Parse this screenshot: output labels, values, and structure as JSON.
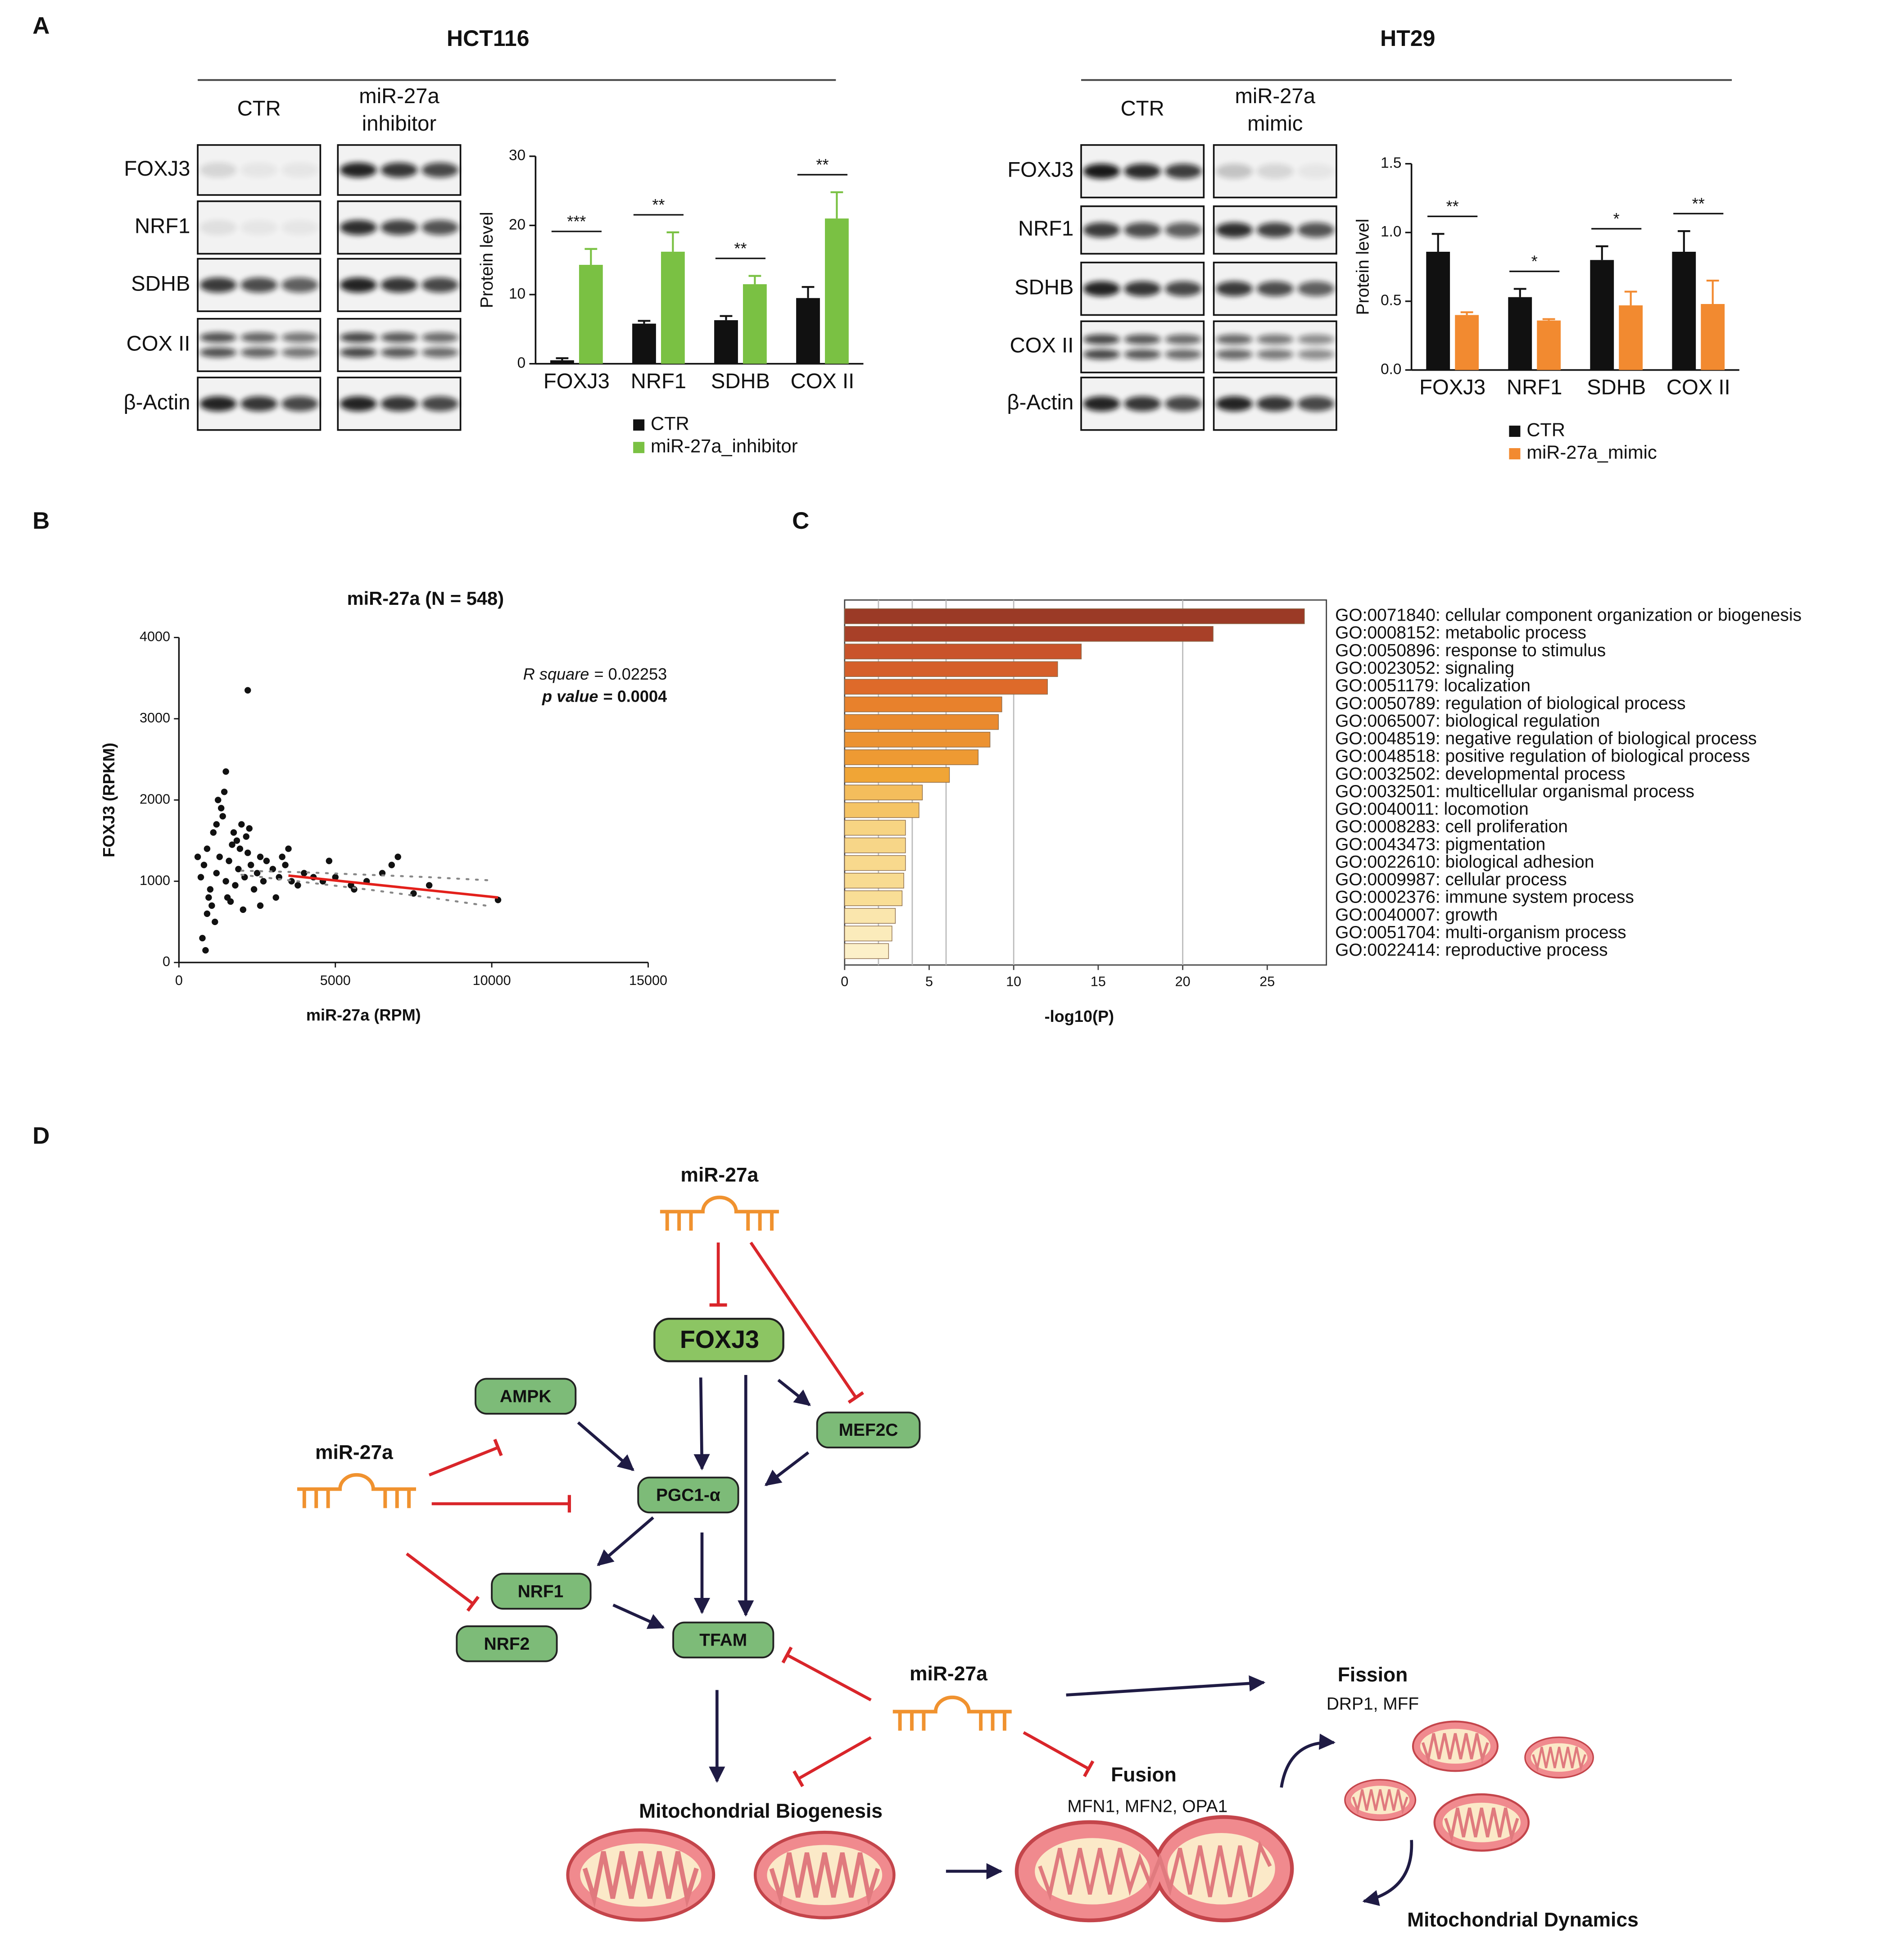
{
  "figure": {
    "panel_labels": [
      "A",
      "B",
      "C",
      "D"
    ]
  },
  "blots": [
    {
      "cell_line": "HCT116",
      "conditions": [
        [
          "CTR"
        ],
        [
          "miR-27a",
          "inhibitor"
        ]
      ],
      "proteins": [
        "FOXJ3",
        "NRF1",
        "SDHB",
        "COX II",
        "β-Actin"
      ]
    },
    {
      "cell_line": "HT29",
      "conditions": [
        [
          "CTR"
        ],
        [
          "miR-27a",
          "mimic"
        ]
      ],
      "proteins": [
        "FOXJ3",
        "NRF1",
        "SDHB",
        "COX II",
        "β-Actin"
      ]
    }
  ],
  "chart_data": [
    {
      "type": "bar",
      "ylabel": "Protein level",
      "categories": [
        "FOXJ3",
        "NRF1",
        "SDHB",
        "COX II"
      ],
      "series": [
        {
          "name": "CTR",
          "color": "#111111",
          "values": [
            0.5,
            5.8,
            6.3,
            9.5
          ],
          "error": [
            0.3,
            0.4,
            0.6,
            1.6
          ]
        },
        {
          "name": "miR-27a_inhibitor",
          "color": "#7ac143",
          "values": [
            14.3,
            16.2,
            11.5,
            21
          ],
          "error": [
            2.3,
            2.8,
            1.2,
            3.8
          ]
        }
      ],
      "significance": [
        "***",
        "**",
        "**",
        "**"
      ],
      "ylim": [
        0,
        30
      ],
      "yticks": [
        0,
        10,
        20,
        30
      ]
    },
    {
      "type": "bar",
      "ylabel": "Protein level",
      "categories": [
        "FOXJ3",
        "NRF1",
        "SDHB",
        "COX II"
      ],
      "series": [
        {
          "name": "CTR",
          "color": "#111111",
          "values": [
            0.86,
            0.53,
            0.8,
            0.86
          ],
          "error": [
            0.13,
            0.06,
            0.1,
            0.15
          ]
        },
        {
          "name": "miR-27a_mimic",
          "color": "#f28a30",
          "values": [
            0.4,
            0.36,
            0.47,
            0.48
          ],
          "error": [
            0.02,
            0.01,
            0.1,
            0.17
          ]
        }
      ],
      "significance": [
        "**",
        "*",
        "*",
        "**"
      ],
      "ylim": [
        0,
        1.5
      ],
      "yticks": [
        {
          "value": 0,
          "label": "0.0"
        },
        0.5,
        {
          "value": 1,
          "label": "1.0"
        },
        1.5
      ]
    },
    {
      "type": "scatter",
      "title": "miR-27a (N = 548)",
      "xlabel": "miR-27a (RPM)",
      "ylabel": "FOXJ3 (RPKM)",
      "r_square_label": "R square",
      "r_square": "= 0.02253",
      "p_value_label": "p value",
      "p_value": "= 0.0004",
      "color": "#111111",
      "fit_color": "#e3201b",
      "x": [
        800,
        900,
        1000,
        1100,
        1200,
        1300,
        1400,
        1500,
        1600,
        1700,
        1800,
        1900,
        2000,
        2100,
        2200,
        2300,
        2400,
        2500,
        2600,
        2700,
        2800,
        3000,
        3200,
        3400,
        3600,
        3800,
        4000,
        4300,
        4600,
        5000,
        5500,
        6000,
        6500,
        7000,
        7500,
        8000,
        900,
        1050,
        1150,
        1250,
        1350,
        1450,
        1550,
        1650,
        1750,
        1850,
        1950,
        2050,
        2150,
        2250,
        700,
        750,
        850,
        950,
        600,
        1500,
        2200,
        3100,
        3500,
        5600,
        10200,
        6800,
        4800,
        1200,
        2600,
        3300
      ],
      "y": [
        1200,
        1400,
        900,
        1600,
        1100,
        1300,
        1800,
        1000,
        1250,
        1450,
        950,
        1150,
        1700,
        1050,
        1350,
        1200,
        900,
        1100,
        1300,
        1000,
        1250,
        1150,
        1050,
        1200,
        1000,
        950,
        1100,
        1050,
        1000,
        1050,
        950,
        1000,
        1100,
        1300,
        850,
        950,
        600,
        700,
        500,
        2000,
        1900,
        2100,
        800,
        750,
        1600,
        1500,
        1400,
        650,
        1550,
        1650,
        1050,
        300,
        150,
        800,
        1300,
        2350,
        3350,
        800,
        1400,
        900,
        770,
        1200,
        1250,
        1700,
        700,
        1300
      ],
      "fit_x": [
        3500,
        10200
      ],
      "fit_y": [
        1070,
        800
      ],
      "ci_x": [
        2000,
        4000,
        6000,
        8000,
        10000
      ],
      "ci_upper": [
        1130,
        1110,
        1080,
        1050,
        1010
      ],
      "ci_lower": [
        1080,
        990,
        900,
        800,
        690
      ],
      "xlim": [
        0,
        15000
      ],
      "xticks": [
        0,
        5000,
        10000,
        15000
      ],
      "ylim": [
        0,
        4000
      ],
      "yticks": [
        0,
        1000,
        2000,
        3000,
        4000
      ]
    },
    {
      "type": "bar",
      "orientation": "horizontal",
      "xlabel": "-log10(P)",
      "categories": [
        "GO:0071840: cellular component organization or biogenesis",
        "GO:0008152: metabolic process",
        "GO:0050896: response to stimulus",
        "GO:0023052: signaling",
        "GO:0051179: localization",
        "GO:0050789: regulation of biological process",
        "GO:0065007: biological regulation",
        "GO:0048519: negative regulation of biological process",
        "GO:0048518: positive regulation of biological process",
        "GO:0032502: developmental process",
        "GO:0032501: multicellular organismal process",
        "GO:0040011: locomotion",
        "GO:0008283: cell proliferation",
        "GO:0043473: pigmentation",
        "GO:0022610: biological adhesion",
        "GO:0009987: cellular process",
        "GO:0002376: immune system process",
        "GO:0040007: growth",
        "GO:0051704: multi-organism process",
        "GO:0022414: reproductive process"
      ],
      "values": [
        27.2,
        21.8,
        14,
        12.6,
        12,
        9.3,
        9.1,
        8.6,
        7.9,
        6.2,
        4.6,
        4.4,
        3.6,
        3.6,
        3.6,
        3.5,
        3.4,
        3,
        2.8,
        2.6
      ],
      "colors": [
        "#9b3a26",
        "#a84028",
        "#c9532a",
        "#d55f2a",
        "#de6a2a",
        "#e8812c",
        "#ea8a2e",
        "#ec9231",
        "#ee9a33",
        "#f0a536",
        "#f4bd5c",
        "#f5c465",
        "#f7d483",
        "#f7d688",
        "#f8d98d",
        "#f8db91",
        "#f9de96",
        "#fae6ad",
        "#fbebbb",
        "#fcf0c9"
      ],
      "label_colors": [
        "#e8283c",
        "#111111",
        "#111111",
        "#111111",
        "#111111",
        "#111111",
        "#111111",
        "#111111",
        "#111111",
        "#111111",
        "#111111",
        "#111111",
        "#111111",
        "#111111",
        "#111111",
        "#111111",
        "#111111",
        "#111111",
        "#111111",
        "#111111"
      ],
      "xlim": [
        0,
        28.5
      ],
      "xticks": [
        0,
        5,
        10,
        15,
        20,
        25
      ],
      "xgrid": [
        2,
        4,
        6,
        10,
        20
      ]
    }
  ],
  "diagram": {
    "nodes": [
      "miR-27a",
      "FOXJ3",
      "AMPK",
      "MEF2C",
      "PGC1-α",
      "NRF1",
      "NRF2",
      "TFAM",
      "miR-27a",
      "miR-27a",
      "Fission",
      "DRP1, MFF",
      "Fusion",
      "MFN1, MFN2, OPA1",
      "Mitochondrial Biogenesis",
      "Mitochondrial Dynamics"
    ]
  }
}
